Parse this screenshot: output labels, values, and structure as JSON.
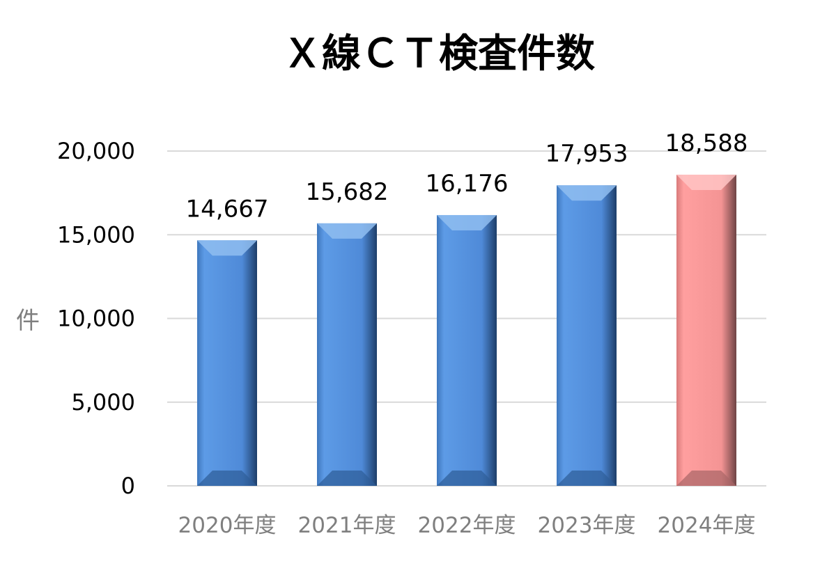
{
  "chart_data": {
    "type": "bar",
    "title": "Ｘ線ＣＴ検査件数",
    "ylabel": "件",
    "xlabel": "",
    "categories": [
      "2020年度",
      "2021年度",
      "2022年度",
      "2023年度",
      "2024年度"
    ],
    "values": [
      14667,
      15682,
      16176,
      17953,
      18588
    ],
    "data_labels": [
      "14,667",
      "15,682",
      "16,176",
      "17,953",
      "18,588"
    ],
    "ylim": [
      0,
      20000
    ],
    "yticks": [
      0,
      5000,
      10000,
      15000,
      20000
    ],
    "ytick_labels": [
      "0",
      "5,000",
      "10,000",
      "15,000",
      "20,000"
    ],
    "grid": true,
    "legend": "none",
    "colors": {
      "default_bar": "#5b9be6",
      "highlight_bar": "#ff9c9c",
      "highlight_index": 4
    }
  }
}
